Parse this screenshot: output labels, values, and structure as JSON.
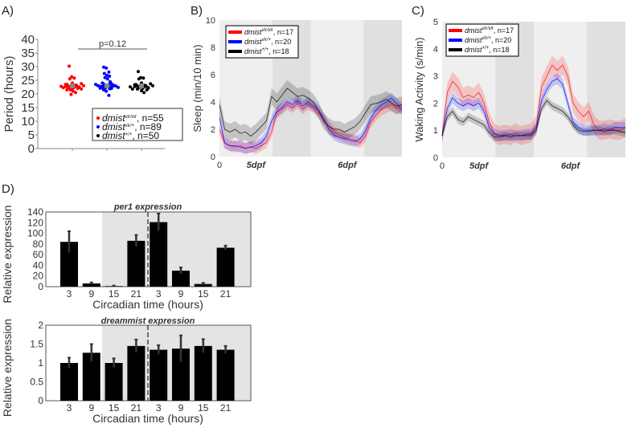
{
  "panel_labels": {
    "a": "A)",
    "b": "B)",
    "c": "C)",
    "d": "D)"
  },
  "chart_data": [
    {
      "panel": "A",
      "type": "scatter",
      "ylabel": "Period (hours)",
      "ylim": [
        0,
        40
      ],
      "yticks": [
        0,
        5,
        10,
        15,
        20,
        25,
        30,
        35,
        40
      ],
      "annotation": "p=0.12",
      "series": [
        {
          "name_base": "dmist",
          "name_sup": "vir/vir",
          "name_rest": ", n=55",
          "color": "#ff0000",
          "mean": 23,
          "values": [
            30.2,
            26.3,
            25.8,
            25.5,
            24,
            23.8,
            23.5,
            23.2,
            23,
            23,
            22.9,
            22.8,
            22.6,
            22.5,
            22.3,
            22,
            21.8,
            21.5,
            21,
            20.5,
            19.8
          ]
        },
        {
          "name_base": "dmist",
          "name_sup": "vir/+",
          "name_rest": ", n=89",
          "color": "#0000ff",
          "mean": 23,
          "values": [
            29.8,
            29.5,
            28,
            27.5,
            26.8,
            26.5,
            26,
            25.5,
            24.5,
            24,
            23.8,
            23.5,
            23.3,
            23.1,
            23,
            23,
            22.9,
            22.8,
            22.6,
            22.4,
            22.2,
            22,
            21.5,
            21,
            19.5
          ]
        },
        {
          "name_base": "dmist",
          "name_sup": "+/+",
          "name_rest": ", n=50",
          "color": "#000000",
          "mean": 23,
          "values": [
            28.2,
            26,
            25.8,
            25.5,
            24,
            23.7,
            23.4,
            23.2,
            23,
            23,
            22.8,
            22.6,
            22.4,
            22.1,
            21.8,
            21.2,
            20.5
          ]
        }
      ]
    },
    {
      "panel": "B",
      "type": "line",
      "ylabel": "Sleep (min/10 min)",
      "ylim": [
        0,
        10
      ],
      "yticks": [
        0,
        2,
        4,
        6,
        8,
        10
      ],
      "xticks": [
        "0",
        "5dpf",
        "6dpf"
      ],
      "shading": [
        "light",
        "dark",
        "light",
        "dark"
      ],
      "series": [
        {
          "name_base": "dmist",
          "name_sup": "vir/vir",
          "name_rest": ", n=17",
          "color": "#ff0000",
          "sem": 0.4,
          "values": [
            2.0,
            1.0,
            0.8,
            0.7,
            0.8,
            0.6,
            0.7,
            0.6,
            0.8,
            1.0,
            1.8,
            3.2,
            3.5,
            3.8,
            3.6,
            3.9,
            3.5,
            3.8,
            3.6,
            3.2,
            2.7,
            2.2,
            1.8,
            1.6,
            1.4,
            1.3,
            1.2,
            1.0,
            1.5,
            2.5,
            3.0,
            3.4,
            3.6,
            3.8,
            3.5,
            3.7
          ]
        },
        {
          "name_base": "dmist",
          "name_sup": "vir/+",
          "name_rest": ", n=20",
          "color": "#0000ff",
          "sem": 0.4,
          "values": [
            2.9,
            1.0,
            0.8,
            0.8,
            0.7,
            0.6,
            0.7,
            0.8,
            1.0,
            1.5,
            2.6,
            3.3,
            3.6,
            4.0,
            3.8,
            4.1,
            3.7,
            4.0,
            3.7,
            3.4,
            2.8,
            2.0,
            1.6,
            1.4,
            1.3,
            1.2,
            1.1,
            1.3,
            1.9,
            2.8,
            3.4,
            3.8,
            4.0,
            4.3,
            3.9,
            3.4
          ]
        },
        {
          "name_base": "dmist",
          "name_sup": "+/+",
          "name_rest": ", n=18",
          "color": "#000000",
          "sem": 0.6,
          "values": [
            3.8,
            2.0,
            1.8,
            2.0,
            1.7,
            1.8,
            1.5,
            1.8,
            2.2,
            2.6,
            4.4,
            4.0,
            4.5,
            5.0,
            4.7,
            4.4,
            4.5,
            4.3,
            4.0,
            3.4,
            2.6,
            2.2,
            2.0,
            2.0,
            1.8,
            2.0,
            2.2,
            2.6,
            3.2,
            3.8,
            3.9,
            4.0,
            4.2,
            3.9,
            3.7,
            3.8
          ]
        }
      ]
    },
    {
      "panel": "C",
      "type": "line",
      "ylabel": "Waking Activity (s/min)",
      "ylim": [
        0,
        5
      ],
      "yticks": [
        0,
        1,
        2,
        3,
        4,
        5
      ],
      "xticks": [
        "0",
        "5dpf",
        "6dpf"
      ],
      "shading": [
        "light",
        "dark",
        "light",
        "dark"
      ],
      "series": [
        {
          "name_base": "dmist",
          "name_sup": "vir/vir",
          "name_rest": ", n=17",
          "color": "#ff0000",
          "sem": 0.35,
          "values": [
            0.8,
            2.4,
            2.8,
            2.6,
            2.2,
            2.3,
            2.2,
            2.4,
            2.0,
            1.3,
            0.9,
            0.8,
            0.85,
            0.8,
            0.9,
            0.8,
            0.85,
            0.9,
            1.2,
            2.6,
            3.0,
            3.4,
            3.2,
            3.4,
            3.0,
            2.0,
            1.7,
            1.5,
            1.7,
            1.2,
            1.0,
            1.0,
            1.05,
            1.0,
            1.0,
            1.1
          ]
        },
        {
          "name_base": "dmist",
          "name_sup": "vir/+",
          "name_rest": ", n=20",
          "color": "#0000ff",
          "sem": 0.2,
          "values": [
            0.8,
            1.8,
            2.2,
            2.0,
            1.9,
            2.0,
            1.9,
            2.0,
            1.7,
            1.1,
            0.85,
            0.8,
            0.8,
            0.85,
            0.8,
            0.8,
            0.85,
            0.85,
            1.1,
            2.1,
            2.5,
            2.8,
            2.9,
            2.7,
            2.0,
            1.3,
            1.1,
            1.0,
            1.0,
            1.0,
            1.0,
            1.05,
            1.0,
            1.1,
            1.1,
            1.1
          ]
        },
        {
          "name_base": "dmist",
          "name_sup": "+/+",
          "name_rest": ", n=18",
          "color": "#000000",
          "sem": 0.15,
          "values": [
            0.8,
            1.5,
            1.7,
            1.4,
            1.3,
            1.5,
            1.4,
            1.3,
            1.2,
            0.9,
            0.75,
            0.75,
            0.8,
            0.75,
            0.8,
            0.8,
            0.8,
            0.8,
            1.0,
            1.8,
            2.1,
            1.9,
            1.8,
            1.7,
            1.5,
            1.2,
            1.0,
            0.95,
            0.95,
            1.0,
            1.0,
            0.95,
            1.0,
            1.0,
            0.95,
            0.9
          ]
        }
      ]
    },
    {
      "panel": "D-top",
      "type": "bar",
      "title": "per1 expression",
      "ylabel": "Relative expression",
      "xlabel": "Circadian time (hours)",
      "ylim": [
        0,
        140
      ],
      "yticks": [
        0,
        20,
        40,
        60,
        80,
        100,
        120,
        140
      ],
      "categories": [
        "3",
        "9",
        "15",
        "21",
        "3",
        "9",
        "15",
        "21"
      ],
      "values": [
        84,
        6,
        1,
        86,
        121,
        30,
        5,
        73
      ],
      "errors": [
        20,
        2,
        1,
        11,
        16,
        6,
        2,
        4
      ]
    },
    {
      "panel": "D-bottom",
      "type": "bar",
      "title": "dreammist expression",
      "ylabel": "Relative expression",
      "xlabel": "Circadian time (hours)",
      "ylim": [
        0,
        2
      ],
      "yticks": [
        0,
        0.5,
        1,
        1.5,
        2
      ],
      "categories": [
        "3",
        "9",
        "15",
        "21",
        "3",
        "9",
        "15",
        "21"
      ],
      "values": [
        1.0,
        1.27,
        1.0,
        1.45,
        1.35,
        1.38,
        1.45,
        1.35
      ],
      "errors": [
        0.14,
        0.23,
        0.12,
        0.17,
        0.12,
        0.35,
        0.18,
        0.1
      ]
    }
  ]
}
